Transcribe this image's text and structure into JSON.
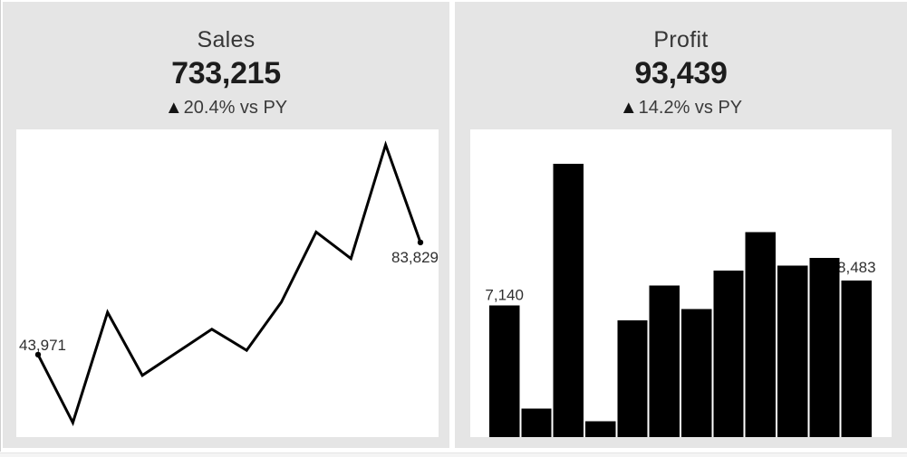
{
  "colors": {
    "page_bg": "#ffffff",
    "card_bg": "#e5e5e5",
    "panel_bg": "#ffffff",
    "chart_ink": "#000000",
    "title_text": "#363636",
    "value_text": "#1d1d1d",
    "change_text": "#3a3a3a",
    "data_label_text": "#2f2f2f",
    "edge_line": "#cfcfcf",
    "bottom_line": "#e4e4e4"
  },
  "cards": [
    {
      "title": "Sales",
      "value": "733,215",
      "change_arrow": "▲",
      "change_text": "20.4% vs PY"
    },
    {
      "title": "Profit",
      "value": "93,439",
      "change_arrow": "▲",
      "change_text": "14.2% vs PY"
    }
  ],
  "chart_data": [
    {
      "type": "line",
      "x": [
        1,
        2,
        3,
        4,
        5,
        6,
        7,
        8,
        9,
        10,
        11,
        12
      ],
      "values": [
        43971,
        19815,
        59000,
        36600,
        44800,
        53000,
        45500,
        62600,
        87500,
        78100,
        118500,
        83829
      ],
      "first_point_label": "43,971",
      "last_point_label": "83,829",
      "line_color": "#000000",
      "markers": "first-and-last-only",
      "axes_visible": false,
      "grid": false,
      "ylim": [
        19815,
        118500
      ]
    },
    {
      "type": "bar",
      "x": [
        1,
        2,
        3,
        4,
        5,
        6,
        7,
        8,
        9,
        10,
        11,
        12
      ],
      "values": [
        7140,
        1550,
        14800,
        860,
        6330,
        8220,
        6930,
        9030,
        11106,
        9290,
        9700,
        8483
      ],
      "first_point_label": "7,140",
      "last_point_label": "8,483",
      "bar_color": "#000000",
      "axes_visible": false,
      "grid": false,
      "ylim": [
        0,
        14800
      ]
    }
  ]
}
